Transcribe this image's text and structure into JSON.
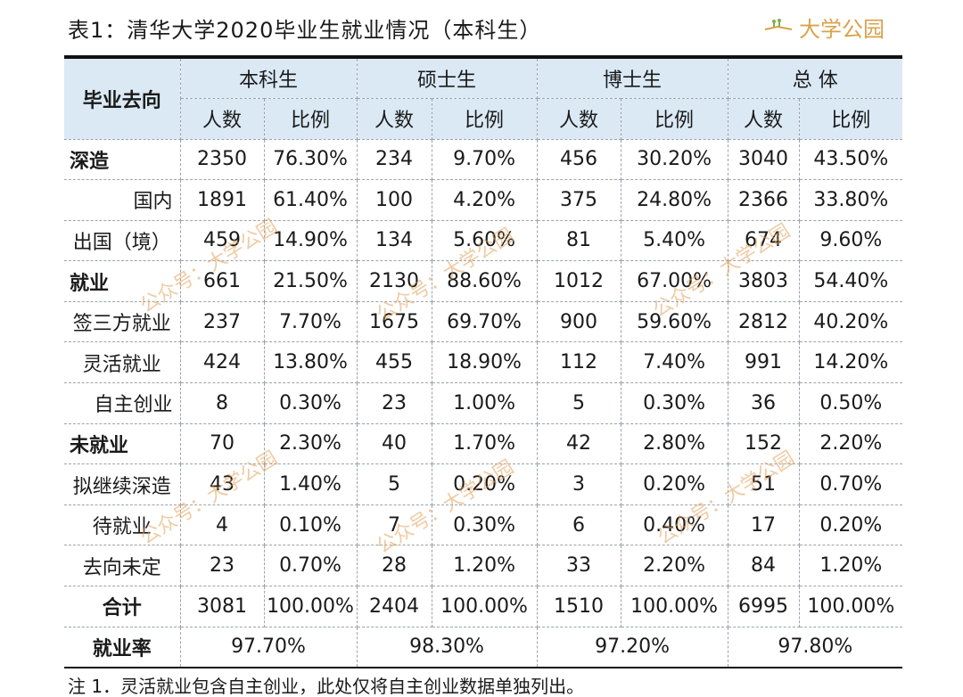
{
  "title": "表1：清华大学2020毕业生就业情况（本科生）",
  "brand": {
    "name": "大学公园",
    "color": "#d9a24a"
  },
  "watermark_text": "公众号：大学公园",
  "header": {
    "corner": "毕业去向",
    "groups": [
      "本科生",
      "硕士生",
      "博士生",
      "总 体"
    ],
    "sub": [
      "人数",
      "比例"
    ]
  },
  "rows": [
    {
      "label": "深造",
      "kind": "group",
      "cells": [
        "2350",
        "76.30%",
        "234",
        "9.70%",
        "456",
        "30.20%",
        "3040",
        "43.50%"
      ]
    },
    {
      "label": "国内",
      "kind": "sub-indent",
      "cells": [
        "1891",
        "61.40%",
        "100",
        "4.20%",
        "375",
        "24.80%",
        "2366",
        "33.80%"
      ]
    },
    {
      "label": "出国（境）",
      "kind": "sub",
      "cells": [
        "459",
        "14.90%",
        "134",
        "5.60%",
        "81",
        "5.40%",
        "674",
        "9.60%"
      ]
    },
    {
      "label": "就业",
      "kind": "group",
      "cells": [
        "661",
        "21.50%",
        "2130",
        "88.60%",
        "1012",
        "67.00%",
        "3803",
        "54.40%"
      ]
    },
    {
      "label": "签三方就业",
      "kind": "sub",
      "cells": [
        "237",
        "7.70%",
        "1675",
        "69.70%",
        "900",
        "59.60%",
        "2812",
        "40.20%"
      ]
    },
    {
      "label": "灵活就业",
      "kind": "sub",
      "cells": [
        "424",
        "13.80%",
        "455",
        "18.90%",
        "112",
        "7.40%",
        "991",
        "14.20%"
      ]
    },
    {
      "label": "自主创业",
      "kind": "sub-indent",
      "cells": [
        "8",
        "0.30%",
        "23",
        "1.00%",
        "5",
        "0.30%",
        "36",
        "0.50%"
      ]
    },
    {
      "label": "未就业",
      "kind": "group",
      "cells": [
        "70",
        "2.30%",
        "40",
        "1.70%",
        "42",
        "2.80%",
        "152",
        "2.20%"
      ]
    },
    {
      "label": "拟继续深造",
      "kind": "sub",
      "cells": [
        "43",
        "1.40%",
        "5",
        "0.20%",
        "3",
        "0.20%",
        "51",
        "0.70%"
      ]
    },
    {
      "label": "待就业",
      "kind": "sub",
      "cells": [
        "4",
        "0.10%",
        "7",
        "0.30%",
        "6",
        "0.40%",
        "17",
        "0.20%"
      ]
    },
    {
      "label": "去向未定",
      "kind": "sub",
      "cells": [
        "23",
        "0.70%",
        "28",
        "1.20%",
        "33",
        "2.20%",
        "84",
        "1.20%"
      ]
    },
    {
      "label": "合计",
      "kind": "total",
      "cells": [
        "3081",
        "100.00%",
        "2404",
        "100.00%",
        "1510",
        "100.00%",
        "6995",
        "100.00%"
      ]
    }
  ],
  "rate": {
    "label": "就业率",
    "values": [
      "97.70%",
      "98.30%",
      "97.20%",
      "97.80%"
    ]
  },
  "note": "注 1．灵活就业包含自主创业，此处仅将自主创业数据单独列出。",
  "colors": {
    "header_bg": "#dbe9f5",
    "rule": "#111111",
    "watermark": "#e2a05a"
  }
}
